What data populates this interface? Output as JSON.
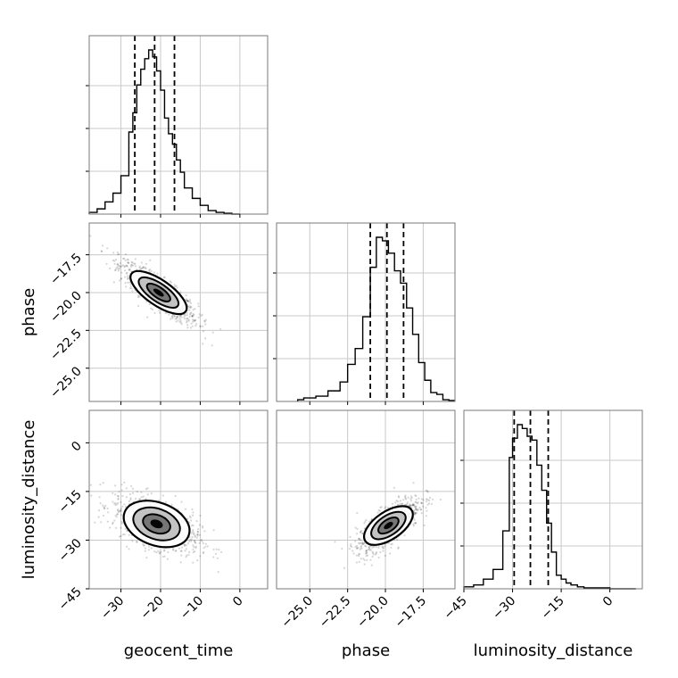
{
  "chart_data": {
    "type": "corner",
    "parameters": [
      "geocent_time",
      "phase",
      "luminosity_distance"
    ],
    "axis_labels": {
      "x": [
        "geocent_time",
        "phase",
        "luminosity_distance"
      ],
      "y": [
        "phase",
        "luminosity_distance"
      ]
    },
    "ranges": {
      "geocent_time": [
        -38,
        7
      ],
      "phase": [
        -27.2,
        -15.4
      ],
      "luminosity_distance": [
        -45,
        10
      ]
    },
    "ticks": {
      "geocent_time": [
        -30,
        -20,
        -10,
        0
      ],
      "phase": [
        -25.0,
        -22.5,
        -20.0,
        -17.5
      ],
      "luminosity_distance": [
        -45,
        -30,
        -15,
        0
      ]
    },
    "tick_labels": {
      "geocent_time": [
        "−30",
        "−20",
        "−10",
        "0"
      ],
      "phase": [
        "−25.0",
        "−22.5",
        "−20.0",
        "−17.5"
      ],
      "luminosity_distance": [
        "−45",
        "−30",
        "−15",
        "0"
      ]
    },
    "quantiles": {
      "geocent_time": [
        -26.5,
        -21.5,
        -16.5
      ],
      "phase": [
        -21.0,
        -19.9,
        -18.8
      ],
      "luminosity_distance": [
        -29.5,
        -24.5,
        -19.0
      ]
    },
    "histograms": {
      "geocent_time": {
        "edges": [
          -38,
          -36,
          -34,
          -32,
          -30,
          -28,
          -27,
          -26,
          -25,
          -24,
          -23,
          -22,
          -21,
          -20,
          -19,
          -18,
          -17,
          -16,
          -15,
          -14,
          -12,
          -10,
          -8,
          -6,
          -4,
          -2,
          0
        ],
        "counts": [
          0.01,
          0.03,
          0.07,
          0.12,
          0.22,
          0.47,
          0.58,
          0.74,
          0.83,
          0.89,
          0.94,
          0.9,
          0.82,
          0.71,
          0.55,
          0.46,
          0.4,
          0.31,
          0.24,
          0.15,
          0.09,
          0.05,
          0.02,
          0.01,
          0.005,
          0
        ]
      },
      "phase": {
        "edges": [
          -25.8,
          -25.4,
          -24.6,
          -23.8,
          -23.0,
          -22.5,
          -22.0,
          -21.5,
          -21.0,
          -20.6,
          -20.2,
          -19.8,
          -19.4,
          -19.0,
          -18.6,
          -18.2,
          -17.8,
          -17.4,
          -17.0,
          -16.6,
          -16.2,
          -15.8,
          -15.4
        ],
        "counts": [
          0.01,
          0.02,
          0.03,
          0.06,
          0.11,
          0.21,
          0.3,
          0.48,
          0.76,
          0.93,
          0.91,
          0.84,
          0.74,
          0.67,
          0.53,
          0.38,
          0.22,
          0.12,
          0.05,
          0.04,
          0.01,
          0.005
        ]
      },
      "luminosity_distance": {
        "edges": [
          -45,
          -42,
          -39,
          -36,
          -33,
          -31,
          -30,
          -28.5,
          -27,
          -25.5,
          -24,
          -22.5,
          -21,
          -19.5,
          -18,
          -16.5,
          -15,
          -13.5,
          -12,
          -10,
          -8,
          -4,
          0,
          4,
          8
        ],
        "counts": [
          0.01,
          0.02,
          0.05,
          0.1,
          0.3,
          0.68,
          0.78,
          0.85,
          0.83,
          0.79,
          0.77,
          0.64,
          0.51,
          0.34,
          0.19,
          0.07,
          0.05,
          0.03,
          0.02,
          0.01,
          0.005,
          0.005,
          0,
          0
        ]
      }
    },
    "joint": {
      "phase_vs_geocent_time": {
        "x_center": -20.5,
        "y_center": -20.0,
        "x_sigma": 4.5,
        "y_sigma": 0.95,
        "correlation": -0.86
      },
      "luminosity_distance_vs_geocent_time": {
        "x_center": -21.0,
        "y_center": -25.0,
        "x_sigma": 5.0,
        "y_sigma": 4.0,
        "correlation": -0.55
      },
      "luminosity_distance_vs_phase": {
        "x_center": -19.8,
        "y_center": -25.5,
        "x_sigma": 0.95,
        "y_sigma": 4.0,
        "correlation": 0.75
      }
    },
    "grid": true
  }
}
